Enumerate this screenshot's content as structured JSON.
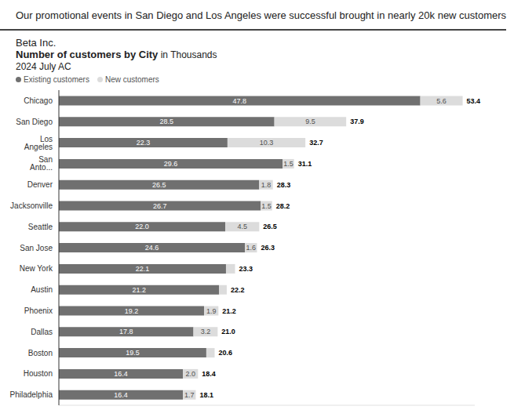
{
  "headline": "Our promotional events in San Diego and Los Angeles were successful brought in nearly 20k new customers",
  "company": "Beta Inc.",
  "chart_data": {
    "type": "bar",
    "title": "Number of customers by City",
    "unit": "in Thousands",
    "subtitle": "2024 July AC",
    "orientation": "horizontal",
    "stacked": true,
    "data_labels": true,
    "tick_labels": "y",
    "grid": false,
    "legend": "top-left",
    "categories": [
      "Chicago",
      "San Diego",
      "Los Angeles",
      "San Anto...",
      "Denver",
      "Jacksonville",
      "Seattle",
      "San Jose",
      "New York",
      "Austin",
      "Phoenix",
      "Dallas",
      "Boston",
      "Houston",
      "Philadelphia"
    ],
    "series": [
      {
        "name": "Existing customers",
        "color": "#707070",
        "values": [
          47.8,
          28.5,
          22.3,
          29.6,
          26.5,
          26.7,
          22.0,
          24.6,
          22.1,
          21.2,
          19.2,
          17.8,
          19.5,
          16.4,
          16.4
        ],
        "value_labels": [
          "47.8",
          "28.5",
          "22.3",
          "29.6",
          "26.5",
          "26.7",
          "22.0",
          "24.6",
          "22.1",
          "21.2",
          "19.2",
          "17.8",
          "19.5",
          "16.4",
          "16.4"
        ]
      },
      {
        "name": "New customers",
        "color": "#dcdcdc",
        "values": [
          5.6,
          9.5,
          10.3,
          1.5,
          1.8,
          1.5,
          4.5,
          1.6,
          1.2,
          1.0,
          1.9,
          3.2,
          1.1,
          2.0,
          1.7
        ],
        "value_labels": [
          "5.6",
          "9.5",
          "10.3",
          "1.5",
          "1.8",
          "1.5",
          "4.5",
          "1.6",
          null,
          null,
          "1.9",
          "3.2",
          null,
          "2.0",
          "1.7"
        ]
      }
    ],
    "totals": [
      53.4,
      37.9,
      32.7,
      31.1,
      28.3,
      28.2,
      26.5,
      26.3,
      23.3,
      22.2,
      21.2,
      21.0,
      20.6,
      18.4,
      18.1
    ],
    "total_labels": [
      "53.4",
      "37.9",
      "32.7",
      "31.1",
      "28.3",
      "28.2",
      "26.5",
      "26.3",
      "23.3",
      "22.2",
      "21.2",
      "21.0",
      "20.6",
      "18.4",
      "18.1"
    ],
    "xlim": [
      0,
      55
    ],
    "xticks": [
      0
    ]
  }
}
